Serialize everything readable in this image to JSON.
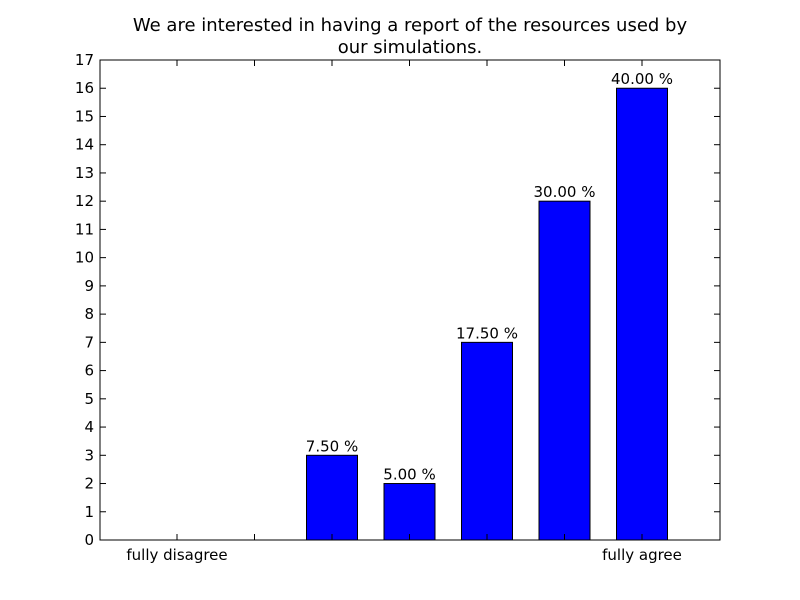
{
  "chart_data": {
    "type": "bar",
    "title_lines": [
      "We are interested in having a report of the resources used by",
      "our simulations."
    ],
    "categories": [
      "fully disagree",
      "",
      "",
      "",
      "",
      "",
      "fully agree"
    ],
    "values": [
      0,
      0,
      3,
      2,
      7,
      12,
      16
    ],
    "bar_labels": [
      "",
      "",
      "7.50 %",
      "5.00 %",
      "17.50 %",
      "30.00 %",
      "40.00 %"
    ],
    "xtick_labels": [
      "fully disagree",
      "fully agree"
    ],
    "ylim": [
      0,
      17
    ],
    "yticks": [
      0,
      1,
      2,
      3,
      4,
      5,
      6,
      7,
      8,
      9,
      10,
      11,
      12,
      13,
      14,
      15,
      16,
      17
    ],
    "bar_color": "#0000ff",
    "edge_color": "#000000",
    "grid": false
  }
}
